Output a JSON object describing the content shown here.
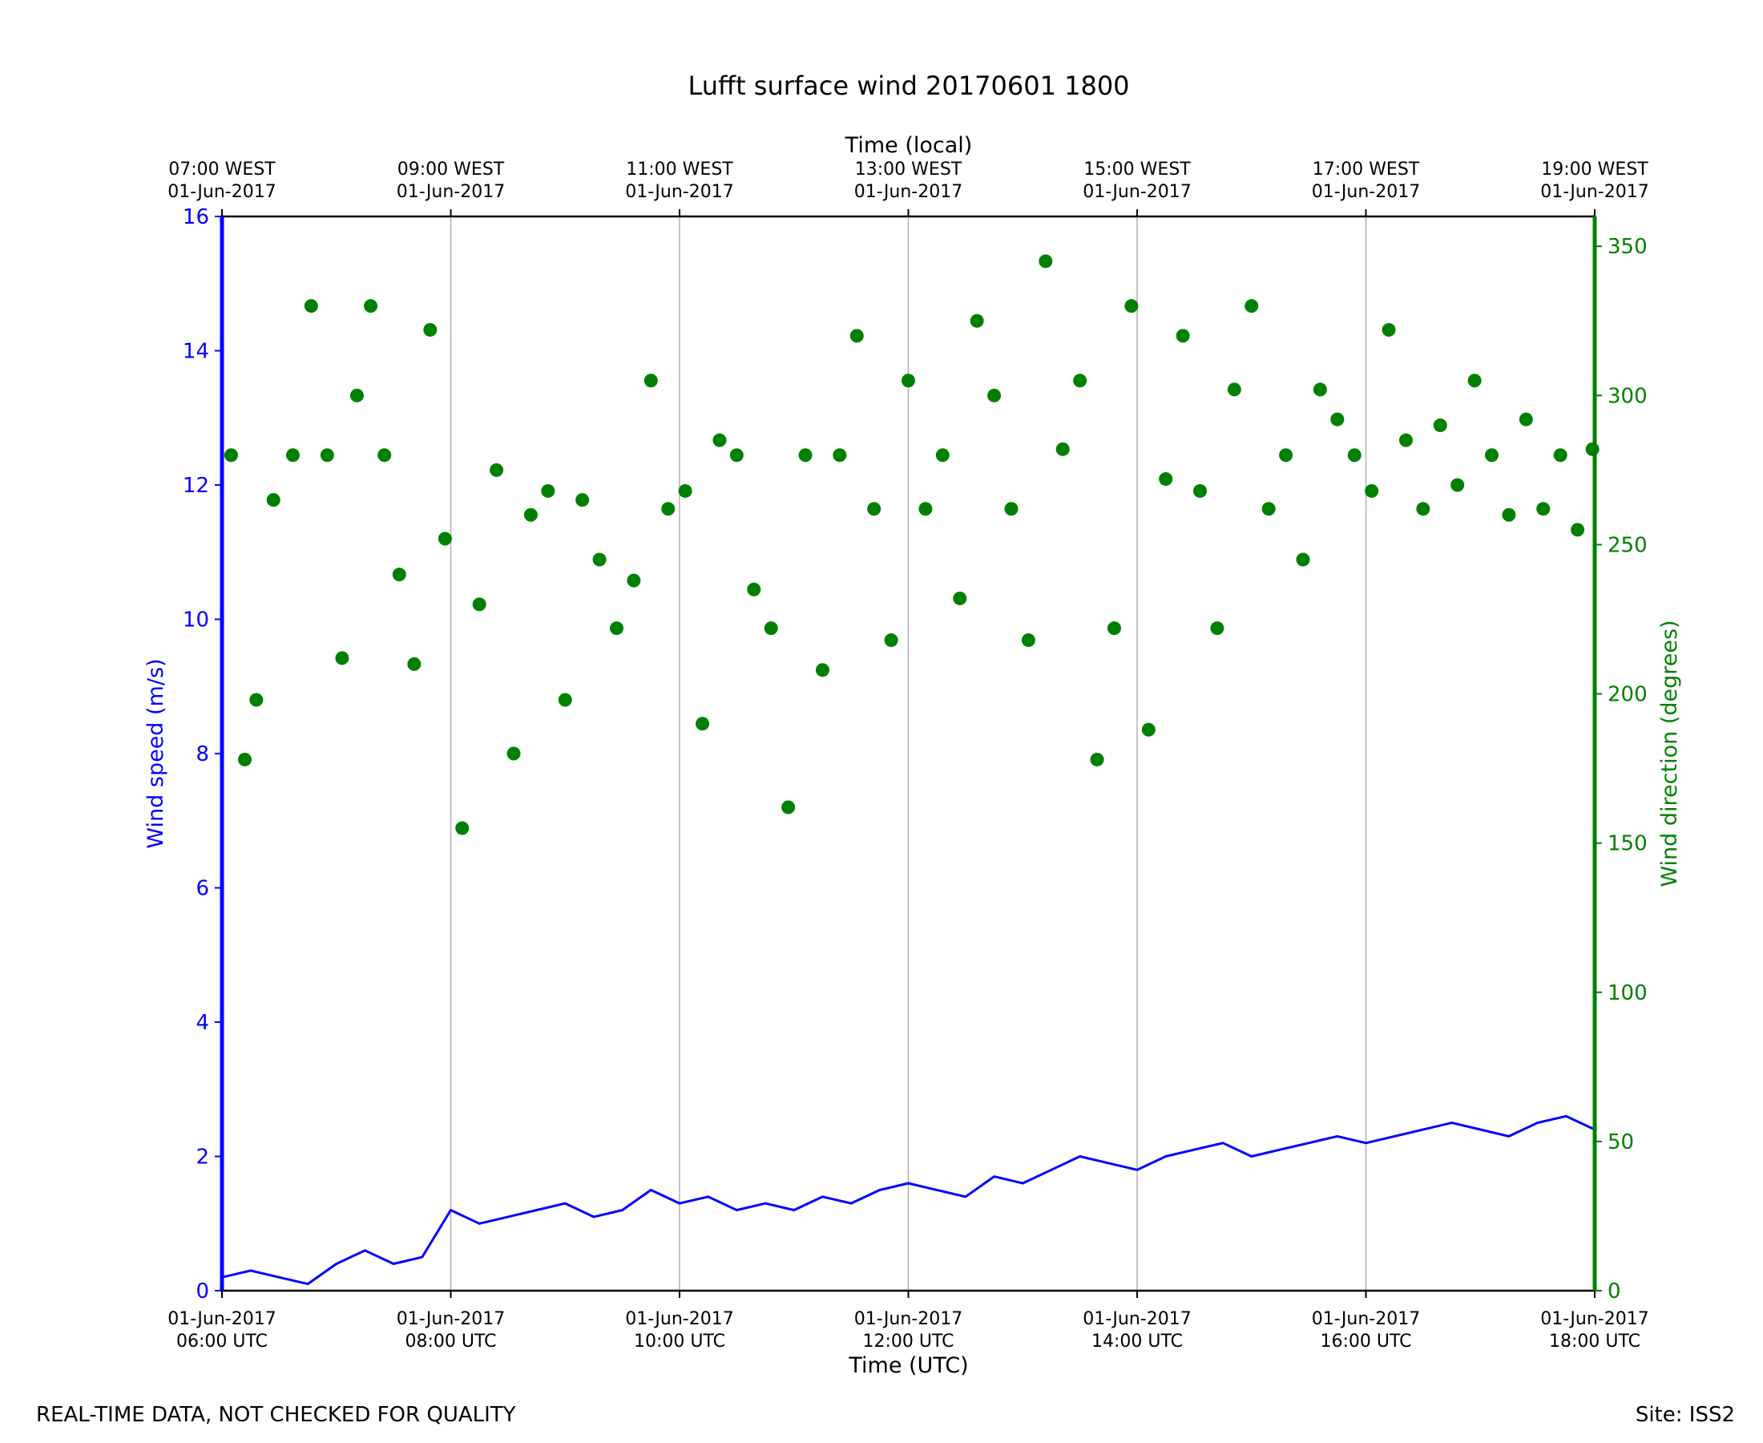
{
  "footer": {
    "left_note": "REAL-TIME DATA, NOT CHECKED FOR QUALITY",
    "site": "Site: ISS2"
  },
  "chart_data": {
    "type": "line",
    "title": "Lufft surface wind 20170601 1800",
    "xlabel": "Time (UTC)",
    "xlabel_top": "Time (local)",
    "ylabel": "Wind speed (m/s)",
    "y2label": "Wind direction (degrees)",
    "colors": {
      "speed": "#0000ff",
      "direction": "#008000",
      "grid": "#b0b0b0"
    },
    "xlim": [
      "2017-06-01 06:00",
      "2017-06-01 18:00"
    ],
    "ylim": [
      0,
      16
    ],
    "y2lim": [
      0,
      360
    ],
    "grid": "vertical",
    "yticks": [
      "0",
      "2",
      "4",
      "6",
      "8",
      "10",
      "12",
      "14",
      "16"
    ],
    "y2ticks": [
      "0",
      "50",
      "100",
      "150",
      "200",
      "250",
      "300",
      "350"
    ],
    "xticks_bottom": [
      {
        "date": "01-Jun-2017",
        "time": "06:00 UTC"
      },
      {
        "date": "01-Jun-2017",
        "time": "08:00 UTC"
      },
      {
        "date": "01-Jun-2017",
        "time": "10:00 UTC"
      },
      {
        "date": "01-Jun-2017",
        "time": "12:00 UTC"
      },
      {
        "date": "01-Jun-2017",
        "time": "14:00 UTC"
      },
      {
        "date": "01-Jun-2017",
        "time": "16:00 UTC"
      },
      {
        "date": "01-Jun-2017",
        "time": "18:00 UTC"
      }
    ],
    "xticks_top": [
      {
        "time": "07:00 WEST",
        "date": "01-Jun-2017"
      },
      {
        "time": "09:00 WEST",
        "date": "01-Jun-2017"
      },
      {
        "time": "11:00 WEST",
        "date": "01-Jun-2017"
      },
      {
        "time": "13:00 WEST",
        "date": "01-Jun-2017"
      },
      {
        "time": "15:00 WEST",
        "date": "01-Jun-2017"
      },
      {
        "time": "17:00 WEST",
        "date": "01-Jun-2017"
      },
      {
        "time": "19:00 WEST",
        "date": "01-Jun-2017"
      }
    ],
    "series": [
      {
        "name": "Wind speed",
        "axis": "left",
        "style": "line",
        "x_hours_utc": [
          6.0,
          6.25,
          6.5,
          6.75,
          7.0,
          7.25,
          7.5,
          7.75,
          8.0,
          8.25,
          8.5,
          8.75,
          9.0,
          9.25,
          9.5,
          9.75,
          10.0,
          10.25,
          10.5,
          10.75,
          11.0,
          11.25,
          11.5,
          11.75,
          12.0,
          12.25,
          12.5,
          12.75,
          13.0,
          13.25,
          13.5,
          13.75,
          14.0,
          14.25,
          14.5,
          14.75,
          15.0,
          15.25,
          15.5,
          15.75,
          16.0,
          16.25,
          16.5,
          16.75,
          17.0,
          17.25,
          17.5,
          17.75,
          18.0
        ],
        "values": [
          0.2,
          0.3,
          0.2,
          0.1,
          0.4,
          0.6,
          0.4,
          0.5,
          1.2,
          1.0,
          1.1,
          1.2,
          1.3,
          1.1,
          1.2,
          1.5,
          1.3,
          1.4,
          1.2,
          1.3,
          1.2,
          1.4,
          1.3,
          1.5,
          1.6,
          1.5,
          1.4,
          1.7,
          1.6,
          1.8,
          2.0,
          1.9,
          1.8,
          2.0,
          2.1,
          2.2,
          2.0,
          2.1,
          2.2,
          2.3,
          2.2,
          2.3,
          2.4,
          2.5,
          2.4,
          2.3,
          2.5,
          2.6,
          2.4
        ]
      },
      {
        "name": "Wind direction",
        "axis": "right",
        "style": "scatter",
        "x_hours_utc": [
          6.08,
          6.2,
          6.3,
          6.45,
          6.62,
          6.78,
          6.92,
          7.05,
          7.18,
          7.3,
          7.42,
          7.55,
          7.68,
          7.82,
          7.95,
          8.1,
          8.25,
          8.4,
          8.55,
          8.7,
          8.85,
          9.0,
          9.15,
          9.3,
          9.45,
          9.6,
          9.75,
          9.9,
          10.05,
          10.2,
          10.35,
          10.5,
          10.65,
          10.8,
          10.95,
          11.1,
          11.25,
          11.4,
          11.55,
          11.7,
          11.85,
          12.0,
          12.15,
          12.3,
          12.45,
          12.6,
          12.75,
          12.9,
          13.05,
          13.2,
          13.35,
          13.5,
          13.65,
          13.8,
          13.95,
          14.1,
          14.25,
          14.4,
          14.55,
          14.7,
          14.85,
          15.0,
          15.15,
          15.3,
          15.45,
          15.6,
          15.75,
          15.9,
          16.05,
          16.2,
          16.35,
          16.5,
          16.65,
          16.8,
          16.95,
          17.1,
          17.25,
          17.4,
          17.55,
          17.7,
          17.85,
          17.98
        ],
        "values": [
          280,
          178,
          198,
          265,
          280,
          330,
          280,
          212,
          300,
          330,
          280,
          240,
          210,
          322,
          252,
          155,
          230,
          275,
          180,
          260,
          268,
          198,
          265,
          245,
          222,
          238,
          305,
          262,
          268,
          190,
          285,
          280,
          235,
          222,
          162,
          280,
          208,
          280,
          320,
          262,
          218,
          305,
          262,
          280,
          232,
          325,
          300,
          262,
          218,
          345,
          282,
          305,
          178,
          222,
          330,
          188,
          272,
          320,
          268,
          222,
          302,
          330,
          262,
          280,
          245,
          302,
          292,
          280,
          268,
          322,
          285,
          262,
          290,
          270,
          305,
          280,
          260,
          292,
          262,
          280,
          255,
          282
        ]
      }
    ]
  }
}
